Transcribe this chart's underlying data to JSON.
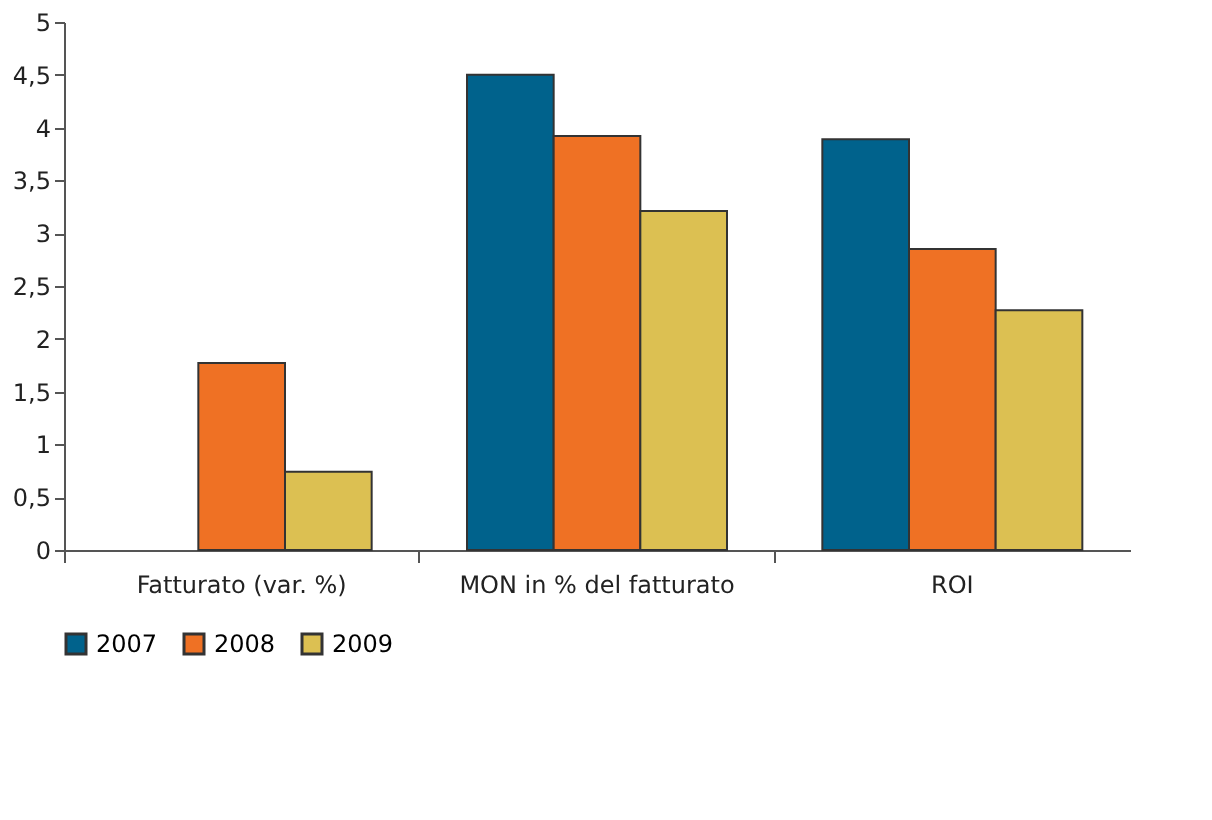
{
  "chart_data": {
    "type": "bar",
    "categories": [
      "Fatturato (var. %)",
      "MON in % del fatturato",
      "ROI"
    ],
    "series": [
      {
        "name": "2007",
        "color": "#00628c",
        "values": [
          null,
          4.5,
          3.89
        ]
      },
      {
        "name": "2008",
        "color": "#ef7124",
        "values": [
          1.77,
          3.92,
          2.85
        ]
      },
      {
        "name": "2009",
        "color": "#dcc052",
        "values": [
          0.74,
          3.21,
          2.27
        ]
      }
    ],
    "ylim": [
      0,
      5
    ],
    "yticks": [
      0,
      {
        "value": 0.5,
        "label": "0,5"
      },
      1,
      {
        "value": 1.5,
        "label": "1,5"
      },
      2,
      {
        "value": 2.5,
        "label": "2,5"
      },
      3,
      {
        "value": 3.5,
        "label": "3,5"
      },
      4,
      {
        "value": 4.5,
        "label": "4,5"
      },
      5
    ],
    "grid": false,
    "legend": "bottom"
  }
}
